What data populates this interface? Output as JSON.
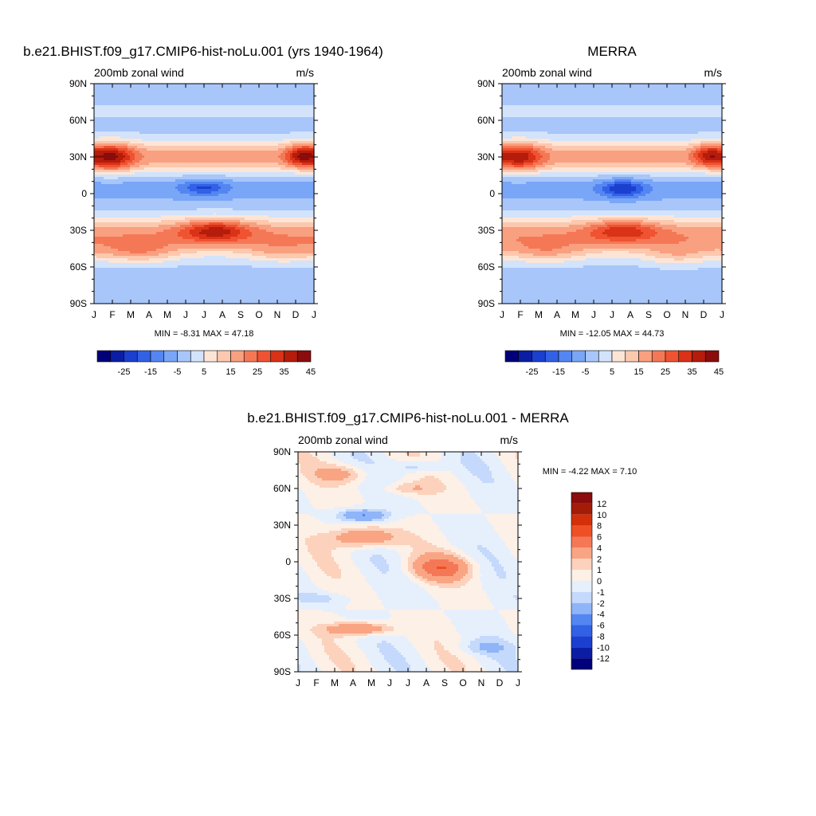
{
  "chart_data": [
    {
      "type": "heatmap",
      "title": "b.e21.BHIST.f09_g17.CMIP6-hist-noLu.001 (yrs 1940-1964)",
      "subtitle_left": "200mb zonal wind",
      "subtitle_right": "m/s",
      "x_ticks": [
        "J",
        "F",
        "M",
        "A",
        "M",
        "J",
        "J",
        "A",
        "S",
        "O",
        "N",
        "D",
        "J"
      ],
      "y_ticks": [
        "90N",
        "60N",
        "30N",
        "0",
        "30S",
        "60S",
        "90S"
      ],
      "stats": "MIN =  -8.31 MAX =  47.18",
      "levels": [
        -30,
        -25,
        -20,
        -15,
        -10,
        -5,
        0,
        5,
        10,
        15,
        20,
        25,
        30,
        35,
        40,
        45
      ],
      "colorbar_labels": [
        "-25",
        "-15",
        "-5",
        "5",
        "15",
        "25",
        "35",
        "45"
      ],
      "features": [
        {
          "x": 0.08,
          "y": 30,
          "sx": 0.1,
          "sy": 11,
          "amp": 25
        },
        {
          "x": 0.94,
          "y": 31,
          "sx": 0.07,
          "sy": 9,
          "amp": 22
        },
        {
          "x": 0.5,
          "y": 5,
          "sx": 0.1,
          "sy": 6,
          "amp": -14
        },
        {
          "x": 0.55,
          "y": -30,
          "sx": 0.16,
          "sy": 9,
          "amp": 21
        },
        {
          "x": 0.2,
          "y": -48,
          "sx": 0.18,
          "sy": 9,
          "amp": 12
        },
        {
          "x": 0.85,
          "y": -48,
          "sx": 0.16,
          "sy": 9,
          "amp": 8
        }
      ]
    },
    {
      "type": "heatmap",
      "title": "MERRA",
      "subtitle_left": "200mb zonal wind",
      "subtitle_right": "m/s",
      "x_ticks": [
        "J",
        "F",
        "M",
        "A",
        "M",
        "J",
        "J",
        "A",
        "S",
        "O",
        "N",
        "D",
        "J"
      ],
      "y_ticks": [
        "90N",
        "60N",
        "30N",
        "0",
        "30S",
        "60S",
        "90S"
      ],
      "stats": "MIN = -12.05 MAX =  44.73",
      "levels": [
        -30,
        -25,
        -20,
        -15,
        -10,
        -5,
        0,
        5,
        10,
        15,
        20,
        25,
        30,
        35,
        40,
        45
      ],
      "colorbar_labels": [
        "-25",
        "-15",
        "-5",
        "5",
        "15",
        "25",
        "35",
        "45"
      ],
      "features": [
        {
          "x": 0.08,
          "y": 30,
          "sx": 0.1,
          "sy": 11,
          "amp": 22
        },
        {
          "x": 0.94,
          "y": 31,
          "sx": 0.07,
          "sy": 9,
          "amp": 20
        },
        {
          "x": 0.55,
          "y": 4,
          "sx": 0.1,
          "sy": 7,
          "amp": -18
        },
        {
          "x": 0.55,
          "y": -30,
          "sx": 0.16,
          "sy": 9,
          "amp": 17
        },
        {
          "x": 0.2,
          "y": -48,
          "sx": 0.18,
          "sy": 9,
          "amp": 10
        },
        {
          "x": 0.8,
          "y": -50,
          "sx": 0.16,
          "sy": 9,
          "amp": 9
        }
      ]
    },
    {
      "type": "heatmap",
      "title": "b.e21.BHIST.f09_g17.CMIP6-hist-noLu.001 - MERRA",
      "subtitle_left": "200mb zonal wind",
      "subtitle_right": "m/s",
      "x_ticks": [
        "J",
        "F",
        "M",
        "A",
        "M",
        "J",
        "J",
        "A",
        "S",
        "O",
        "N",
        "D",
        "J"
      ],
      "y_ticks": [
        "90N",
        "60N",
        "30N",
        "0",
        "30S",
        "60S",
        "90S"
      ],
      "stats": "MIN =  -4.22 MAX =    7.10",
      "levels": [
        -12,
        -10,
        -8,
        -6,
        -4,
        -2,
        -1,
        0,
        1,
        2,
        4,
        6,
        8,
        10,
        12
      ],
      "colorbar_labels": [
        "12",
        "10",
        "8",
        "6",
        "4",
        "2",
        "1",
        "0",
        "-1",
        "-2",
        "-4",
        "-6",
        "-8",
        "-10",
        "-12"
      ],
      "features": [
        {
          "x": 0.3,
          "y": 20,
          "sx": 0.14,
          "sy": 8,
          "amp": 4.5
        },
        {
          "x": 0.65,
          "y": -5,
          "sx": 0.13,
          "sy": 10,
          "amp": 5.0
        },
        {
          "x": 0.3,
          "y": 38,
          "sx": 0.11,
          "sy": 5,
          "amp": -4.0
        },
        {
          "x": 0.28,
          "y": -55,
          "sx": 0.14,
          "sy": 5,
          "amp": 4.5
        },
        {
          "x": 0.2,
          "y": 72,
          "sx": 0.12,
          "sy": 7,
          "amp": 2.5
        },
        {
          "x": 0.55,
          "y": 78,
          "sx": 0.12,
          "sy": 5,
          "amp": -2.2
        },
        {
          "x": 0.1,
          "y": -30,
          "sx": 0.12,
          "sy": 5,
          "amp": -1.5
        },
        {
          "x": 0.85,
          "y": -70,
          "sx": 0.12,
          "sy": 6,
          "amp": -1.5
        },
        {
          "x": 0.5,
          "y": 60,
          "sx": 0.12,
          "sy": 5,
          "amp": 2.0
        }
      ]
    }
  ],
  "palette": {
    "full": [
      "#00007a",
      "#0b1ea3",
      "#1b3fcf",
      "#3261e6",
      "#5486f2",
      "#7aa6f7",
      "#a8c6fa",
      "#d2e3fb",
      "#fde5d6",
      "#fcc8ae",
      "#f9a080",
      "#f57856",
      "#ef5332",
      "#d93216",
      "#b51c0c",
      "#8a0c0c"
    ],
    "diff": [
      "#00007a",
      "#0b1ea3",
      "#1b3fcf",
      "#3261e6",
      "#5486f2",
      "#8fb4f7",
      "#c4d9fb",
      "#e6effc",
      "#fdf0e6",
      "#fcd2bd",
      "#f9a584",
      "#f57856",
      "#ef4f24",
      "#d3300a",
      "#a31c08",
      "#8a0c0c"
    ]
  }
}
